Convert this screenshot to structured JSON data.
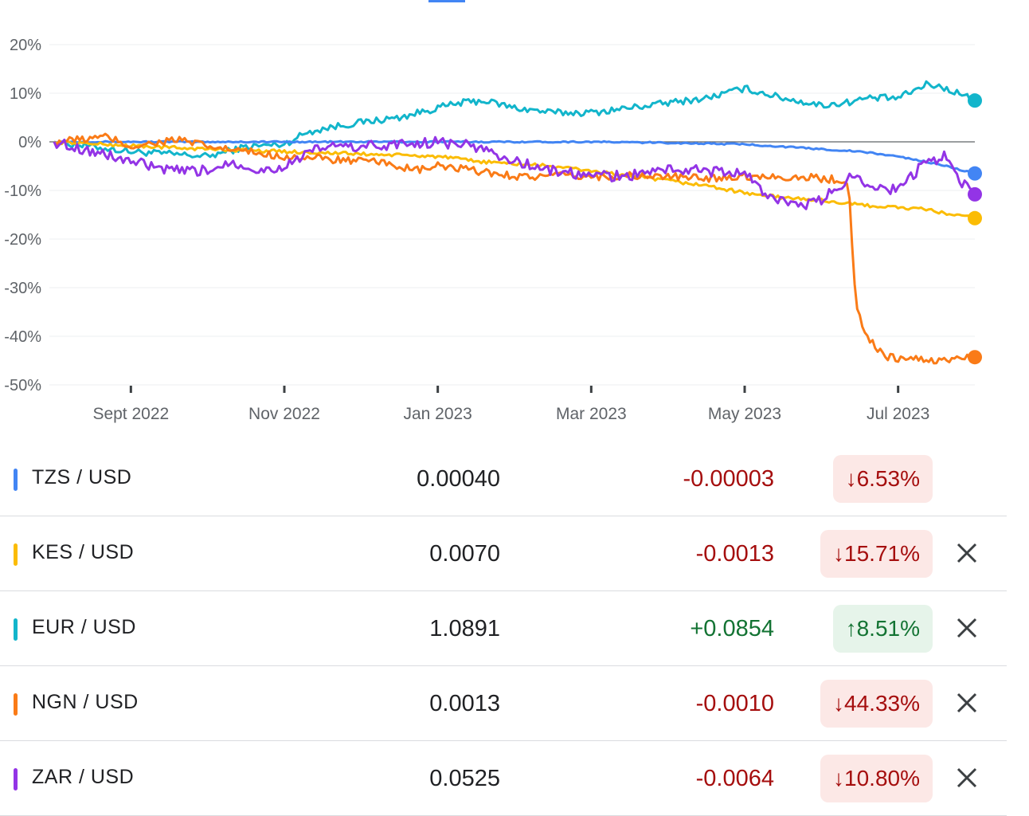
{
  "chart_data": {
    "type": "line",
    "title": "",
    "xlabel": "",
    "ylabel": "",
    "ylim": [
      -50,
      20
    ],
    "yticks": [
      20,
      10,
      0,
      -10,
      -20,
      -30,
      -40,
      -50
    ],
    "ytick_labels": [
      "20%",
      "10%",
      "0%",
      "-10%",
      "-20%",
      "-30%",
      "-40%",
      "-50%"
    ],
    "xlim": [
      0,
      12
    ],
    "xticks": [
      1,
      3,
      5,
      7,
      9,
      11
    ],
    "xtick_labels": [
      "Sept 2022",
      "Nov 2022",
      "Jan 2023",
      "Mar 2023",
      "May 2023",
      "Jul 2023"
    ],
    "x_description": "months since Aug 2022",
    "series": [
      {
        "name": "EUR / USD",
        "color": "#12b5cb",
        "x": [
          0,
          0.5,
          1,
          1.5,
          2,
          2.5,
          3,
          3.3,
          3.6,
          4,
          4.5,
          5,
          5.3,
          5.6,
          6,
          6.5,
          7,
          7.5,
          8,
          8.5,
          9,
          9.5,
          10,
          10.3,
          10.6,
          11,
          11.4,
          11.8,
          12
        ],
        "values": [
          0,
          -1,
          -2,
          -2.5,
          -3,
          -1,
          -0.5,
          2,
          3,
          4,
          5,
          7,
          8,
          8.5,
          7,
          6,
          6,
          7,
          8,
          9,
          11,
          9,
          7.5,
          8,
          9,
          9,
          12,
          10,
          8.5
        ]
      },
      {
        "name": "TZS / USD",
        "color": "#4285f4",
        "x": [
          0,
          1,
          2,
          3,
          4,
          5,
          6,
          7,
          8,
          9,
          9.5,
          10,
          10.5,
          11,
          11.5,
          12
        ],
        "values": [
          0,
          0,
          0,
          0,
          0,
          0,
          0,
          0,
          -0.2,
          -0.5,
          -1,
          -1.5,
          -2,
          -3,
          -4.5,
          -6.5
        ]
      },
      {
        "name": "KES / USD",
        "color": "#fbbc04",
        "x": [
          0,
          1,
          2,
          3,
          4,
          5,
          5.5,
          6,
          6.5,
          7,
          7.5,
          8,
          8.5,
          9,
          9.5,
          10,
          10.5,
          11,
          11.4,
          11.7,
          12
        ],
        "values": [
          0,
          -0.8,
          -1.5,
          -2,
          -2.5,
          -3,
          -4,
          -4.5,
          -5,
          -6,
          -7,
          -8,
          -9,
          -10.5,
          -11.5,
          -12,
          -13,
          -13.5,
          -14,
          -15,
          -15.7
        ]
      },
      {
        "name": "NGN / USD",
        "color": "#fa7b17",
        "x": [
          0,
          0.7,
          1,
          1.6,
          2,
          2.5,
          3,
          3.5,
          4,
          4.4,
          4.7,
          5,
          5.5,
          6,
          6.3,
          6.6,
          7,
          7.5,
          8,
          8.5,
          9,
          9.5,
          10,
          10.35,
          10.45,
          10.6,
          10.8,
          11,
          11.5,
          12
        ],
        "values": [
          0,
          1,
          -1,
          0.5,
          -1,
          -2,
          -3,
          -3.5,
          -4,
          -4.5,
          -6,
          -5,
          -6,
          -7,
          -7.2,
          -7,
          -7.2,
          -7,
          -7.2,
          -7.5,
          -7,
          -7.2,
          -7.5,
          -8,
          -34,
          -40,
          -44,
          -44.5,
          -45,
          -44.3
        ]
      },
      {
        "name": "ZAR / USD",
        "color": "#9334e6",
        "x": [
          0,
          0.5,
          1,
          1.5,
          2,
          2.3,
          2.7,
          3,
          3.5,
          4,
          4.5,
          5,
          5.5,
          6,
          6.5,
          7,
          7.5,
          8,
          8.5,
          9,
          9.3,
          9.7,
          10,
          10.4,
          10.7,
          11,
          11.3,
          11.6,
          11.8,
          12
        ],
        "values": [
          0,
          -2,
          -4,
          -6,
          -6,
          -4,
          -6,
          -5,
          -1,
          -1,
          -0.5,
          0,
          -1,
          -4,
          -6,
          -7,
          -7,
          -5.5,
          -6,
          -6.5,
          -11,
          -13.5,
          -12,
          -7,
          -9,
          -10,
          -5,
          -3,
          -8,
          -10.8
        ]
      }
    ],
    "baseline": 0
  },
  "table": {
    "rows": [
      {
        "pair": "TZS / USD",
        "color": "#4285f4",
        "price": "0.00040",
        "change": "-0.00003",
        "dir": "neg",
        "arrow": "↓",
        "pct": "6.53%",
        "removable": false
      },
      {
        "pair": "KES / USD",
        "color": "#fbbc04",
        "price": "0.0070",
        "change": "-0.0013",
        "dir": "neg",
        "arrow": "↓",
        "pct": "15.71%",
        "removable": true
      },
      {
        "pair": "EUR / USD",
        "color": "#12b5cb",
        "price": "1.0891",
        "change": "+0.0854",
        "dir": "pos",
        "arrow": "↑",
        "pct": "8.51%",
        "removable": true
      },
      {
        "pair": "NGN / USD",
        "color": "#fa7b17",
        "price": "0.0013",
        "change": "-0.0010",
        "dir": "neg",
        "arrow": "↓",
        "pct": "44.33%",
        "removable": true
      },
      {
        "pair": "ZAR / USD",
        "color": "#9334e6",
        "price": "0.0525",
        "change": "-0.0064",
        "dir": "neg",
        "arrow": "↓",
        "pct": "10.80%",
        "removable": true
      }
    ],
    "close_icon": "close-icon"
  }
}
